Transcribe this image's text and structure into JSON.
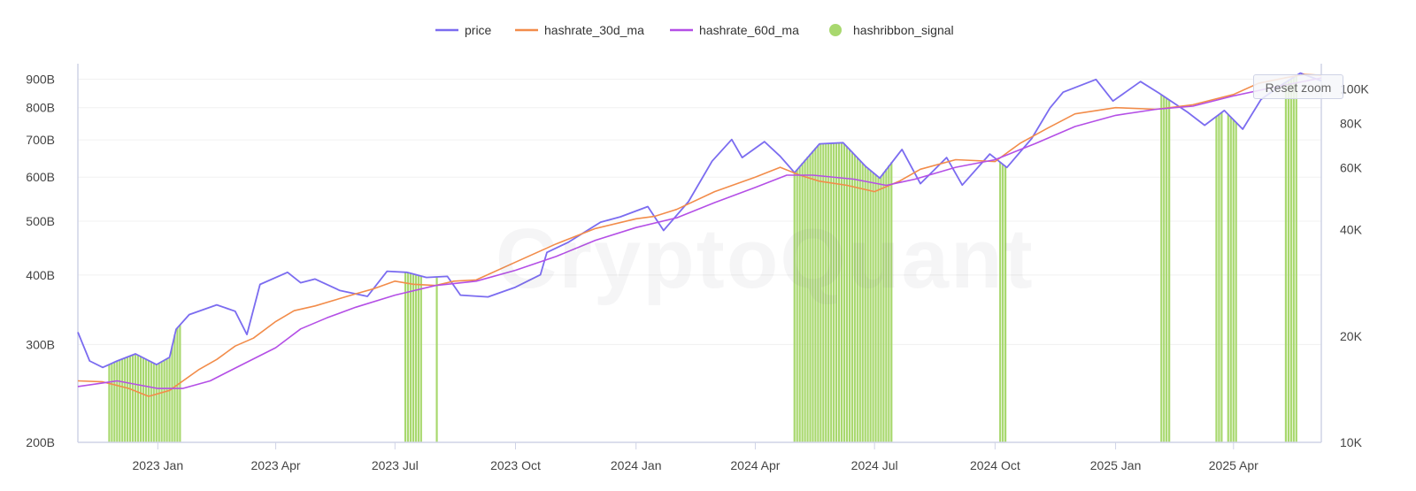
{
  "watermark": "CryptoQuant",
  "reset_zoom_label": "Reset zoom",
  "chart_data": {
    "type": "line",
    "legend_position": "top-center",
    "grid": true,
    "colors": {
      "price": "#7b6cf0",
      "hashrate_30d_ma": "#f28c4a",
      "hashrate_60d_ma": "#b44fe6",
      "hashribbon_signal": "#a8d86e"
    },
    "x_ticks": [
      {
        "date": "2023-01-01",
        "label": "2023 Jan"
      },
      {
        "date": "2023-04-01",
        "label": "2023 Apr"
      },
      {
        "date": "2023-07-01",
        "label": "2023 Jul"
      },
      {
        "date": "2023-10-01",
        "label": "2023 Oct"
      },
      {
        "date": "2024-01-01",
        "label": "2024 Jan"
      },
      {
        "date": "2024-04-01",
        "label": "2024 Apr"
      },
      {
        "date": "2024-07-01",
        "label": "2024 Jul"
      },
      {
        "date": "2024-10-01",
        "label": "2024 Oct"
      },
      {
        "date": "2025-01-01",
        "label": "2025 Jan"
      },
      {
        "date": "2025-04-01",
        "label": "2025 Apr"
      }
    ],
    "x_range": [
      "2022-11-01",
      "2025-06-07"
    ],
    "y_left": {
      "scale": "log",
      "range": [
        200,
        960
      ],
      "ticks": [
        {
          "value": 200,
          "label": "200B"
        },
        {
          "value": 300,
          "label": "300B"
        },
        {
          "value": 400,
          "label": "400B"
        },
        {
          "value": 500,
          "label": "500B"
        },
        {
          "value": 600,
          "label": "600B"
        },
        {
          "value": 700,
          "label": "700B"
        },
        {
          "value": 800,
          "label": "800B"
        },
        {
          "value": 900,
          "label": "900B"
        }
      ]
    },
    "y_right": {
      "scale": "log",
      "range": [
        10000,
        118000
      ],
      "ticks": [
        {
          "value": 10000,
          "label": "10K"
        },
        {
          "value": 20000,
          "label": "20K"
        },
        {
          "value": 40000,
          "label": "40K"
        },
        {
          "value": 60000,
          "label": "60K"
        },
        {
          "value": 80000,
          "label": "80K"
        },
        {
          "value": 100000,
          "label": "100K"
        }
      ]
    },
    "series": [
      {
        "name": "price",
        "axis": "right",
        "points": [
          [
            "2022-11-01",
            20500
          ],
          [
            "2022-11-10",
            17000
          ],
          [
            "2022-11-20",
            16300
          ],
          [
            "2022-12-01",
            17000
          ],
          [
            "2022-12-15",
            17800
          ],
          [
            "2022-12-31",
            16600
          ],
          [
            "2023-01-10",
            17400
          ],
          [
            "2023-01-15",
            20900
          ],
          [
            "2023-01-25",
            23000
          ],
          [
            "2023-02-15",
            24500
          ],
          [
            "2023-03-01",
            23500
          ],
          [
            "2023-03-10",
            20200
          ],
          [
            "2023-03-20",
            28000
          ],
          [
            "2023-04-10",
            30300
          ],
          [
            "2023-04-20",
            28300
          ],
          [
            "2023-05-01",
            29000
          ],
          [
            "2023-05-20",
            26900
          ],
          [
            "2023-06-10",
            25900
          ],
          [
            "2023-06-25",
            30500
          ],
          [
            "2023-07-10",
            30300
          ],
          [
            "2023-07-25",
            29300
          ],
          [
            "2023-08-10",
            29500
          ],
          [
            "2023-08-20",
            26100
          ],
          [
            "2023-09-10",
            25800
          ],
          [
            "2023-10-01",
            27500
          ],
          [
            "2023-10-20",
            29800
          ],
          [
            "2023-10-25",
            34500
          ],
          [
            "2023-11-10",
            36800
          ],
          [
            "2023-12-05",
            42000
          ],
          [
            "2023-12-20",
            43500
          ],
          [
            "2024-01-10",
            46500
          ],
          [
            "2024-01-22",
            39800
          ],
          [
            "2024-02-10",
            48000
          ],
          [
            "2024-02-28",
            62500
          ],
          [
            "2024-03-14",
            72000
          ],
          [
            "2024-03-22",
            64000
          ],
          [
            "2024-04-08",
            71000
          ],
          [
            "2024-04-20",
            64500
          ],
          [
            "2024-05-01",
            58000
          ],
          [
            "2024-05-20",
            70000
          ],
          [
            "2024-06-07",
            70500
          ],
          [
            "2024-06-24",
            60500
          ],
          [
            "2024-07-05",
            56000
          ],
          [
            "2024-07-22",
            67500
          ],
          [
            "2024-08-05",
            54000
          ],
          [
            "2024-08-25",
            64000
          ],
          [
            "2024-09-06",
            53500
          ],
          [
            "2024-09-27",
            65500
          ],
          [
            "2024-10-10",
            60000
          ],
          [
            "2024-10-29",
            72500
          ],
          [
            "2024-11-12",
            88500
          ],
          [
            "2024-11-22",
            98000
          ],
          [
            "2024-12-17",
            106500
          ],
          [
            "2024-12-30",
            92500
          ],
          [
            "2025-01-20",
            105000
          ],
          [
            "2025-02-03",
            97500
          ],
          [
            "2025-02-25",
            86000
          ],
          [
            "2025-03-10",
            79000
          ],
          [
            "2025-03-25",
            87000
          ],
          [
            "2025-04-08",
            77000
          ],
          [
            "2025-04-22",
            93500
          ],
          [
            "2025-05-08",
            103000
          ],
          [
            "2025-05-22",
            111000
          ],
          [
            "2025-06-07",
            105500
          ]
        ]
      },
      {
        "name": "hashrate_30d_ma",
        "axis": "left",
        "points": [
          [
            "2022-11-01",
            258
          ],
          [
            "2022-11-20",
            257
          ],
          [
            "2022-12-10",
            250
          ],
          [
            "2022-12-25",
            242
          ],
          [
            "2023-01-10",
            248
          ],
          [
            "2023-02-01",
            270
          ],
          [
            "2023-02-15",
            282
          ],
          [
            "2023-03-01",
            298
          ],
          [
            "2023-03-15",
            308
          ],
          [
            "2023-04-01",
            330
          ],
          [
            "2023-04-15",
            345
          ],
          [
            "2023-05-01",
            352
          ],
          [
            "2023-05-15",
            360
          ],
          [
            "2023-06-01",
            370
          ],
          [
            "2023-06-15",
            378
          ],
          [
            "2023-07-01",
            390
          ],
          [
            "2023-07-15",
            385
          ],
          [
            "2023-08-01",
            383
          ],
          [
            "2023-08-15",
            390
          ],
          [
            "2023-09-01",
            392
          ],
          [
            "2023-10-01",
            422
          ],
          [
            "2023-11-01",
            455
          ],
          [
            "2023-12-01",
            485
          ],
          [
            "2024-01-01",
            505
          ],
          [
            "2024-01-15",
            510
          ],
          [
            "2024-02-01",
            525
          ],
          [
            "2024-03-01",
            565
          ],
          [
            "2024-04-01",
            600
          ],
          [
            "2024-04-20",
            625
          ],
          [
            "2024-05-05",
            605
          ],
          [
            "2024-05-20",
            590
          ],
          [
            "2024-06-10",
            580
          ],
          [
            "2024-07-01",
            565
          ],
          [
            "2024-07-20",
            590
          ],
          [
            "2024-08-05",
            620
          ],
          [
            "2024-09-01",
            645
          ],
          [
            "2024-10-01",
            640
          ],
          [
            "2024-10-20",
            690
          ],
          [
            "2024-11-10",
            735
          ],
          [
            "2024-12-01",
            780
          ],
          [
            "2025-01-01",
            800
          ],
          [
            "2025-02-01",
            795
          ],
          [
            "2025-03-01",
            810
          ],
          [
            "2025-04-01",
            845
          ],
          [
            "2025-04-20",
            885
          ],
          [
            "2025-05-10",
            905
          ],
          [
            "2025-05-25",
            918
          ],
          [
            "2025-06-07",
            915
          ]
        ]
      },
      {
        "name": "hashrate_60d_ma",
        "axis": "left",
        "points": [
          [
            "2022-11-01",
            252
          ],
          [
            "2022-12-01",
            258
          ],
          [
            "2023-01-01",
            250
          ],
          [
            "2023-01-20",
            250
          ],
          [
            "2023-02-10",
            258
          ],
          [
            "2023-03-01",
            272
          ],
          [
            "2023-04-01",
            296
          ],
          [
            "2023-04-20",
            320
          ],
          [
            "2023-05-10",
            335
          ],
          [
            "2023-06-01",
            350
          ],
          [
            "2023-07-01",
            368
          ],
          [
            "2023-08-01",
            383
          ],
          [
            "2023-09-01",
            390
          ],
          [
            "2023-10-01",
            408
          ],
          [
            "2023-11-01",
            432
          ],
          [
            "2023-12-01",
            462
          ],
          [
            "2024-01-01",
            487
          ],
          [
            "2024-02-01",
            507
          ],
          [
            "2024-03-01",
            540
          ],
          [
            "2024-04-01",
            575
          ],
          [
            "2024-04-25",
            605
          ],
          [
            "2024-05-15",
            605
          ],
          [
            "2024-06-15",
            595
          ],
          [
            "2024-07-10",
            580
          ],
          [
            "2024-08-01",
            595
          ],
          [
            "2024-09-01",
            625
          ],
          [
            "2024-10-01",
            645
          ],
          [
            "2024-11-01",
            690
          ],
          [
            "2024-12-01",
            740
          ],
          [
            "2025-01-01",
            775
          ],
          [
            "2025-02-01",
            795
          ],
          [
            "2025-03-01",
            805
          ],
          [
            "2025-04-01",
            840
          ],
          [
            "2025-05-01",
            870
          ],
          [
            "2025-06-07",
            905
          ]
        ]
      }
    ],
    "hashribbon_signal_periods": [
      [
        "2022-11-25",
        "2023-01-19"
      ],
      [
        "2023-07-09",
        "2023-07-21"
      ],
      [
        "2023-08-02",
        "2023-08-03"
      ],
      [
        "2024-05-01",
        "2024-07-15"
      ],
      [
        "2024-10-05",
        "2024-10-09"
      ],
      [
        "2025-02-05",
        "2025-02-11"
      ],
      [
        "2025-03-19",
        "2025-03-23"
      ],
      [
        "2025-03-28",
        "2025-04-03"
      ],
      [
        "2025-05-11",
        "2025-05-20"
      ]
    ],
    "legend": [
      {
        "label": "price",
        "marker": "line",
        "color": "#7b6cf0"
      },
      {
        "label": "hashrate_30d_ma",
        "marker": "line",
        "color": "#f28c4a"
      },
      {
        "label": "hashrate_60d_ma",
        "marker": "line",
        "color": "#b44fe6"
      },
      {
        "label": "hashribbon_signal",
        "marker": "dot",
        "color": "#a8d86e"
      }
    ]
  }
}
